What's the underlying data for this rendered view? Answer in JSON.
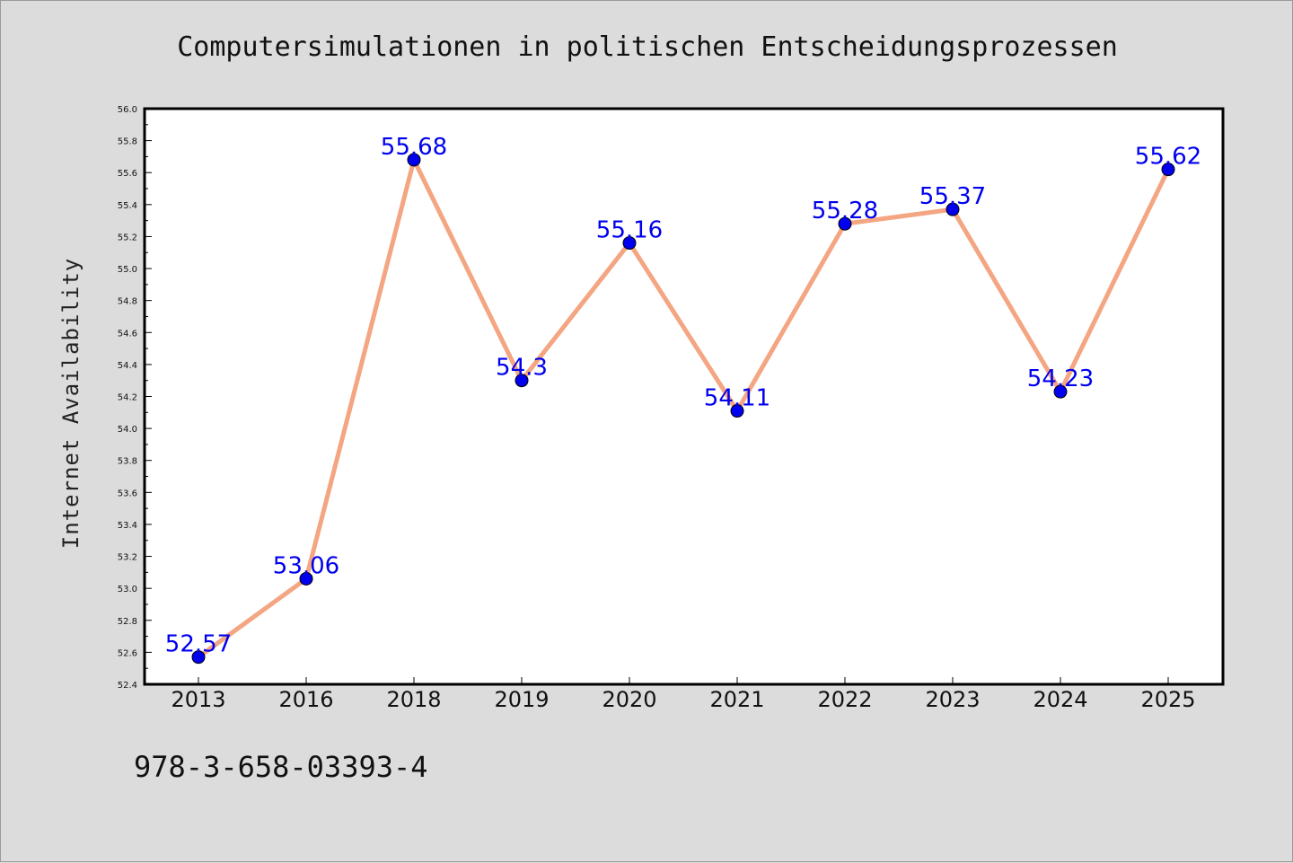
{
  "chart_data": {
    "type": "line",
    "title": "Computersimulationen in politischen Entscheidungsprozessen",
    "xlabel": "",
    "ylabel": "Internet Availability",
    "categories": [
      "2013",
      "2016",
      "2018",
      "2019",
      "2020",
      "2021",
      "2022",
      "2023",
      "2024",
      "2025"
    ],
    "series": [
      {
        "values": [
          52.57,
          53.06,
          55.68,
          54.3,
          55.16,
          54.11,
          55.28,
          55.37,
          54.23,
          55.62
        ],
        "labels": [
          "52.57",
          "53.06",
          "55.68",
          "54.3",
          "55.16",
          "54.11",
          "55.28",
          "55.37",
          "54.23",
          "55.62"
        ]
      }
    ],
    "ylim": [
      52.4,
      56.0
    ],
    "y_ticks": [
      "52.4",
      "52.6",
      "52.8",
      "53.0",
      "53.2",
      "53.4",
      "53.6",
      "53.8",
      "54.0",
      "54.2",
      "54.4",
      "54.6",
      "54.8",
      "55.0",
      "55.2",
      "55.4",
      "55.6",
      "55.8",
      "56.0"
    ],
    "grid": false,
    "colors": {
      "line": "#f4a582",
      "marker": "#0000ee",
      "label": "#0000ee"
    }
  },
  "footer": {
    "code": "978-3-658-03393-4"
  }
}
